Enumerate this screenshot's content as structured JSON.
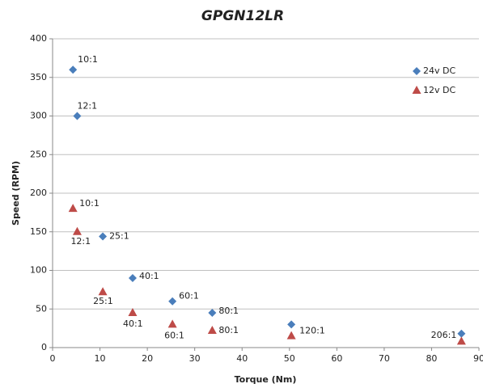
{
  "chart_data": {
    "type": "scatter",
    "title": "GPGN12LR",
    "xlabel": "Torque (Nm)",
    "ylabel": "Speed (RPM)",
    "xlim": [
      0,
      90
    ],
    "xticks": [
      0,
      10,
      20,
      30,
      40,
      50,
      60,
      70,
      80,
      90
    ],
    "ylim": [
      0,
      400
    ],
    "yticks": [
      0,
      50,
      100,
      150,
      200,
      250,
      300,
      350,
      400
    ],
    "grid": true,
    "legend": "upper right",
    "series": [
      {
        "name": "24v DC",
        "color": "#4a7ebb",
        "marker": "diamond",
        "x": [
          4.3,
          5.2,
          10.6,
          16.9,
          25.3,
          33.7,
          50.4,
          86.3
        ],
        "values": [
          360,
          300,
          144,
          90,
          60,
          45,
          30,
          18
        ],
        "labels": [
          "10:1",
          "12:1",
          "25:1",
          "40:1",
          "60:1",
          "80:1",
          "120:1",
          "206:1"
        ]
      },
      {
        "name": "12v DC",
        "color": "#be4b48",
        "marker": "triangle",
        "x": [
          4.3,
          5.2,
          10.6,
          16.9,
          25.3,
          33.7,
          50.4,
          86.3
        ],
        "values": [
          180,
          150,
          72,
          45,
          30,
          22,
          15,
          8
        ],
        "labels": [
          "10:1",
          "12:1",
          "25:1",
          "40:1",
          "60:1",
          "80:1",
          null,
          null
        ]
      }
    ]
  }
}
